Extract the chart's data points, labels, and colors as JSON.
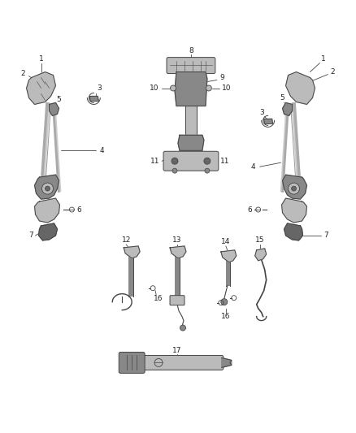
{
  "bg_color": "#ffffff",
  "line_color": "#444444",
  "part_color": "#888888",
  "light_part": "#bbbbbb",
  "dark_part": "#666666",
  "label_color": "#222222",
  "figsize": [
    4.38,
    5.33
  ],
  "dpi": 100,
  "fs": 6.5,
  "lw_part": 0.7,
  "lw_leader": 0.6
}
